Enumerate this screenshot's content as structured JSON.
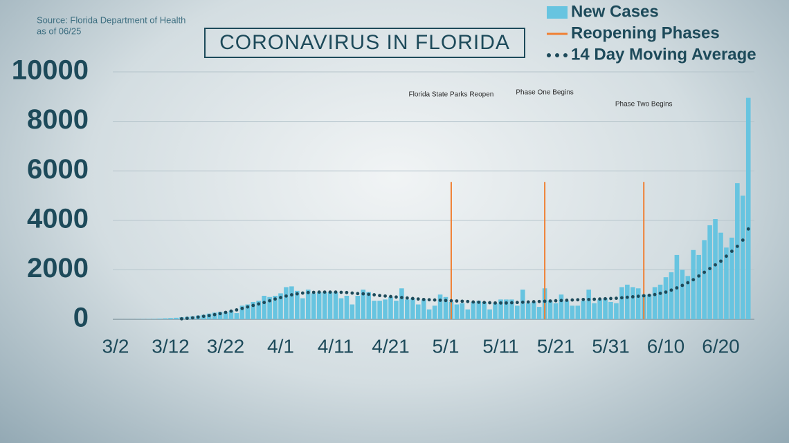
{
  "chart_data": {
    "type": "bar",
    "title": "CORONAVIRUS IN FLORIDA",
    "source": "Source: Florida Department of Health",
    "date_note": "as of 06/25",
    "categories": [
      "3/2",
      null,
      null,
      null,
      null,
      null,
      null,
      null,
      null,
      null,
      "3/12",
      null,
      null,
      null,
      null,
      null,
      null,
      null,
      null,
      null,
      "3/22",
      null,
      null,
      null,
      null,
      null,
      null,
      null,
      null,
      null,
      "4/1",
      null,
      null,
      null,
      null,
      null,
      null,
      null,
      null,
      null,
      "4/11",
      null,
      null,
      null,
      null,
      null,
      null,
      null,
      null,
      null,
      "4/21",
      null,
      null,
      null,
      null,
      null,
      null,
      null,
      null,
      null,
      "5/1",
      null,
      null,
      null,
      null,
      null,
      null,
      null,
      null,
      null,
      "5/11",
      null,
      null,
      null,
      null,
      null,
      null,
      null,
      null,
      null,
      "5/21",
      null,
      null,
      null,
      null,
      null,
      null,
      null,
      null,
      null,
      "5/31",
      null,
      null,
      null,
      null,
      null,
      null,
      null,
      null,
      null,
      "6/10",
      null,
      null,
      null,
      null,
      null,
      null,
      null,
      null,
      null,
      "6/20",
      null,
      null,
      null,
      null,
      null
    ],
    "series": [
      {
        "name": "New Cases",
        "type": "bar",
        "color": "#67c4e0",
        "values": [
          2,
          3,
          5,
          5,
          8,
          12,
          15,
          20,
          30,
          40,
          50,
          60,
          80,
          100,
          120,
          150,
          180,
          230,
          270,
          300,
          280,
          350,
          250,
          550,
          600,
          700,
          750,
          950,
          900,
          950,
          1050,
          1300,
          1330,
          1150,
          850,
          1200,
          1050,
          1100,
          1100,
          1100,
          1100,
          850,
          950,
          600,
          950,
          1200,
          1100,
          750,
          750,
          800,
          900,
          750,
          1250,
          800,
          850,
          600,
          800,
          400,
          550,
          1000,
          900,
          700,
          600,
          650,
          400,
          700,
          750,
          700,
          400,
          650,
          800,
          800,
          800,
          550,
          1200,
          650,
          700,
          500,
          1250,
          750,
          650,
          1000,
          750,
          550,
          550,
          750,
          1200,
          650,
          800,
          850,
          700,
          650,
          1300,
          1400,
          1300,
          1250,
          1000,
          1000,
          1300,
          1400,
          1700,
          1900,
          2600,
          2000,
          1750,
          2800,
          2600,
          3200,
          3800,
          4050,
          3500,
          2900,
          3300,
          5500,
          5000,
          8950
        ]
      },
      {
        "name": "Reopening Phases",
        "type": "vline",
        "color": "#f07f32",
        "values": [
          null,
          null,
          null,
          null,
          null,
          null,
          null,
          null,
          null,
          null,
          null,
          null,
          null,
          null,
          null,
          null,
          null,
          null,
          null,
          null,
          null,
          null,
          null,
          null,
          null,
          null,
          null,
          null,
          null,
          null,
          null,
          null,
          null,
          null,
          null,
          null,
          null,
          null,
          null,
          null,
          null,
          null,
          null,
          null,
          null,
          null,
          null,
          null,
          null,
          null,
          null,
          null,
          null,
          null,
          null,
          null,
          null,
          null,
          null,
          null,
          null,
          5550,
          null,
          null,
          null,
          null,
          null,
          null,
          null,
          null,
          null,
          null,
          null,
          null,
          null,
          null,
          null,
          null,
          5550,
          null,
          null,
          null,
          null,
          null,
          null,
          null,
          null,
          null,
          null,
          null,
          null,
          null,
          null,
          null,
          null,
          null,
          5550,
          null,
          null,
          null,
          null,
          null,
          null,
          null,
          null,
          null,
          null,
          null,
          null,
          null,
          null,
          null,
          null,
          null,
          null,
          null
        ]
      },
      {
        "name": "14 Day Moving Average",
        "type": "dots",
        "color": "#1d4a5a",
        "values": [
          null,
          null,
          null,
          null,
          null,
          null,
          null,
          null,
          null,
          null,
          null,
          null,
          20,
          40,
          60,
          90,
          120,
          150,
          190,
          230,
          280,
          330,
          380,
          440,
          500,
          560,
          620,
          680,
          750,
          820,
          880,
          940,
          990,
          1030,
          1060,
          1080,
          1090,
          1100,
          1100,
          1100,
          1100,
          1090,
          1080,
          1060,
          1040,
          1030,
          1010,
          990,
          960,
          940,
          920,
          900,
          880,
          860,
          840,
          820,
          800,
          790,
          780,
          770,
          760,
          750,
          740,
          730,
          720,
          700,
          690,
          680,
          670,
          660,
          660,
          660,
          670,
          680,
          690,
          700,
          710,
          720,
          730,
          740,
          750,
          760,
          770,
          780,
          790,
          800,
          800,
          810,
          820,
          830,
          840,
          850,
          870,
          890,
          910,
          930,
          950,
          970,
          1000,
          1050,
          1100,
          1180,
          1270,
          1370,
          1480,
          1600,
          1750,
          1900,
          2050,
          2200,
          2350,
          2550,
          2750,
          2950,
          3200,
          3650
        ]
      }
    ],
    "annotations": [
      {
        "text": "Florida State Parks Reopen",
        "index": 61
      },
      {
        "text": "Phase One Begins",
        "index": 78
      },
      {
        "text": "Phase Two Begins",
        "index": 96
      }
    ],
    "ylim": [
      0,
      10000
    ],
    "yticks": [
      0,
      2000,
      4000,
      6000,
      8000,
      10000
    ],
    "grid": true
  }
}
